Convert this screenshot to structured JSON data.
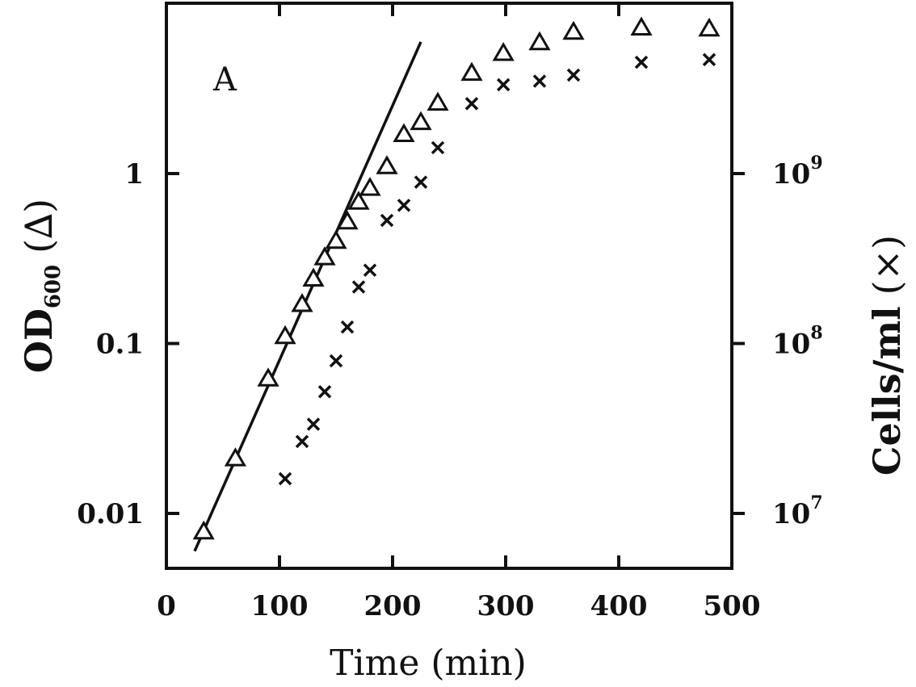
{
  "chart_data": {
    "type": "scatter",
    "panel_label": "A",
    "xlabel": "Time (min)",
    "ylabel_left": {
      "main": "OD",
      "sub": "600",
      "marker": "(∆)"
    },
    "ylabel_right": {
      "main": "Cells/ml",
      "marker": "(×)"
    },
    "xlim": [
      0,
      500
    ],
    "x_ticks": [
      0,
      100,
      200,
      300,
      400,
      500
    ],
    "y_left_scale": "log",
    "y_left_lim": [
      0.005,
      10
    ],
    "y_left_ticks": [
      {
        "value": 0.01,
        "label": "0.01"
      },
      {
        "value": 0.1,
        "label": "0.1"
      },
      {
        "value": 1,
        "label": "1"
      }
    ],
    "y_right_scale": "log",
    "y_right_ticks": [
      {
        "value": 10000000,
        "base": "10",
        "exp": "7"
      },
      {
        "value": 100000000,
        "base": "10",
        "exp": "8"
      },
      {
        "value": 1000000000,
        "base": "10",
        "exp": "9"
      }
    ],
    "series": [
      {
        "marker": "triangle",
        "axis": "left",
        "x": [
          33,
          61,
          90,
          105,
          120,
          130,
          140,
          150,
          160,
          170,
          180,
          195,
          210,
          225,
          240,
          270,
          298,
          330,
          360,
          420,
          480
        ],
        "y": [
          0.0078,
          0.021,
          0.062,
          0.11,
          0.17,
          0.24,
          0.32,
          0.4,
          0.52,
          0.68,
          0.82,
          1.1,
          1.7,
          2.0,
          2.6,
          3.9,
          5.1,
          5.9,
          6.8,
          7.2,
          7.1
        ]
      },
      {
        "marker": "cross",
        "axis": "right",
        "x": [
          105,
          120,
          130,
          140,
          150,
          160,
          170,
          180,
          195,
          210,
          225,
          240,
          270,
          298,
          330,
          360,
          420,
          480
        ],
        "y": [
          16000000,
          26500000,
          33500000,
          52000000,
          79000000,
          125000000,
          215000000,
          270000000,
          530000000,
          650000000,
          890000000,
          1420000000,
          2580000000,
          3330000000,
          3500000000,
          3800000000,
          4520000000,
          4680000000
        ]
      },
      {
        "marker": "line",
        "axis": "left",
        "x": [
          25,
          225
        ],
        "y": [
          0.006,
          5.95
        ]
      }
    ]
  }
}
